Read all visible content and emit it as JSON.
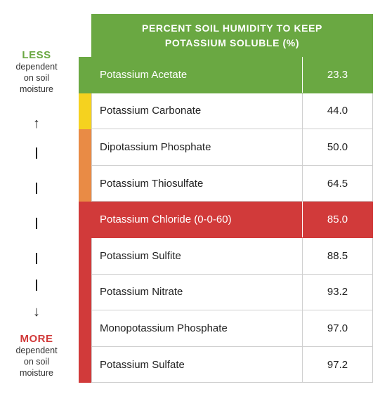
{
  "header": {
    "title_line1": "PERCENT SOIL HUMIDITY TO KEEP",
    "title_line2": "POTASSIUM SOLUBLE (%)"
  },
  "scale": {
    "top_label": "LESS",
    "top_sub1": "dependent",
    "top_sub2": "on soil",
    "top_sub3": "moisture",
    "bottom_label": "MORE",
    "bottom_sub1": "dependent",
    "bottom_sub2": "on soil",
    "bottom_sub3": "moisture",
    "up_arrow": "↑",
    "down_arrow": "↓"
  },
  "colors": {
    "green": "#6aa842",
    "yellow": "#f5d21f",
    "orange": "#e98b45",
    "red": "#d13a3a"
  },
  "rows": [
    {
      "name": "Potassium Acetate",
      "value": "23.3"
    },
    {
      "name": "Potassium Carbonate",
      "value": "44.0"
    },
    {
      "name": "Dipotassium Phosphate",
      "value": "50.0"
    },
    {
      "name": "Potassium Thiosulfate",
      "value": "64.5"
    },
    {
      "name": "Potassium Chloride (0-0-60)",
      "value": "85.0"
    },
    {
      "name": "Potassium Sulfite",
      "value": "88.5"
    },
    {
      "name": "Potassium Nitrate",
      "value": "93.2"
    },
    {
      "name": "Monopotassium Phosphate",
      "value": "97.0"
    },
    {
      "name": "Potassium Sulfate",
      "value": "97.2"
    }
  ]
}
